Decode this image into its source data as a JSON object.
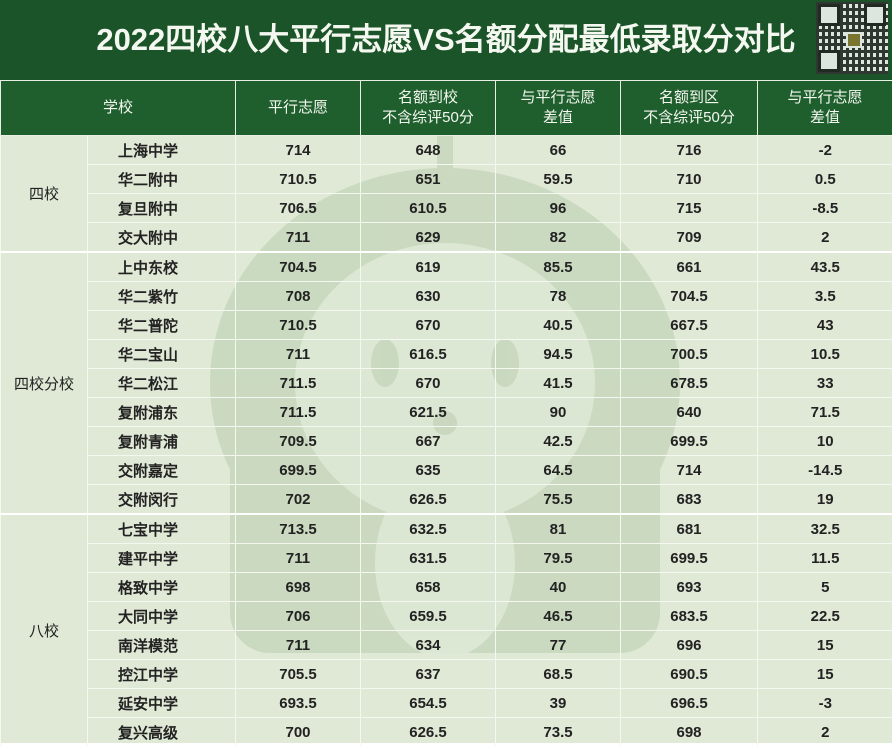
{
  "title": "2022四校八大平行志愿VS名额分配最低录取分对比",
  "colors": {
    "header_bg": "#1f5f2d",
    "title_bg": "#1b5428",
    "body_bg": "#dfe9d6"
  },
  "headers": {
    "school": "学校",
    "parallel": "平行志愿",
    "quota_school_1": "名额到校",
    "quota_school_2": "不含综评50分",
    "diff1_1": "与平行志愿",
    "diff1_2": "差值",
    "quota_district_1": "名额到区",
    "quota_district_2": "不含综评50分",
    "diff2_1": "与平行志愿",
    "diff2_2": "差值"
  },
  "groups": [
    {
      "name": "四校",
      "rows": [
        [
          "上海中学",
          "714",
          "648",
          "66",
          "716",
          "-2"
        ],
        [
          "华二附中",
          "710.5",
          "651",
          "59.5",
          "710",
          "0.5"
        ],
        [
          "复旦附中",
          "706.5",
          "610.5",
          "96",
          "715",
          "-8.5"
        ],
        [
          "交大附中",
          "711",
          "629",
          "82",
          "709",
          "2"
        ]
      ]
    },
    {
      "name": "四校分校",
      "rows": [
        [
          "上中东校",
          "704.5",
          "619",
          "85.5",
          "661",
          "43.5"
        ],
        [
          "华二紫竹",
          "708",
          "630",
          "78",
          "704.5",
          "3.5"
        ],
        [
          "华二普陀",
          "710.5",
          "670",
          "40.5",
          "667.5",
          "43"
        ],
        [
          "华二宝山",
          "711",
          "616.5",
          "94.5",
          "700.5",
          "10.5"
        ],
        [
          "华二松江",
          "711.5",
          "670",
          "41.5",
          "678.5",
          "33"
        ],
        [
          "复附浦东",
          "711.5",
          "621.5",
          "90",
          "640",
          "71.5"
        ],
        [
          "复附青浦",
          "709.5",
          "667",
          "42.5",
          "699.5",
          "10"
        ],
        [
          "交附嘉定",
          "699.5",
          "635",
          "64.5",
          "714",
          "-14.5"
        ],
        [
          "交附闵行",
          "702",
          "626.5",
          "75.5",
          "683",
          "19"
        ]
      ]
    },
    {
      "name": "八校",
      "rows": [
        [
          "七宝中学",
          "713.5",
          "632.5",
          "81",
          "681",
          "32.5"
        ],
        [
          "建平中学",
          "711",
          "631.5",
          "79.5",
          "699.5",
          "11.5"
        ],
        [
          "格致中学",
          "698",
          "658",
          "40",
          "693",
          "5"
        ],
        [
          "大同中学",
          "706",
          "659.5",
          "46.5",
          "683.5",
          "22.5"
        ],
        [
          "南洋模范",
          "711",
          "634",
          "77",
          "696",
          "15"
        ],
        [
          "控江中学",
          "705.5",
          "637",
          "68.5",
          "690.5",
          "15"
        ],
        [
          "延安中学",
          "693.5",
          "654.5",
          "39",
          "696.5",
          "-3"
        ],
        [
          "复兴高级",
          "700",
          "626.5",
          "73.5",
          "698",
          "2"
        ]
      ]
    }
  ]
}
